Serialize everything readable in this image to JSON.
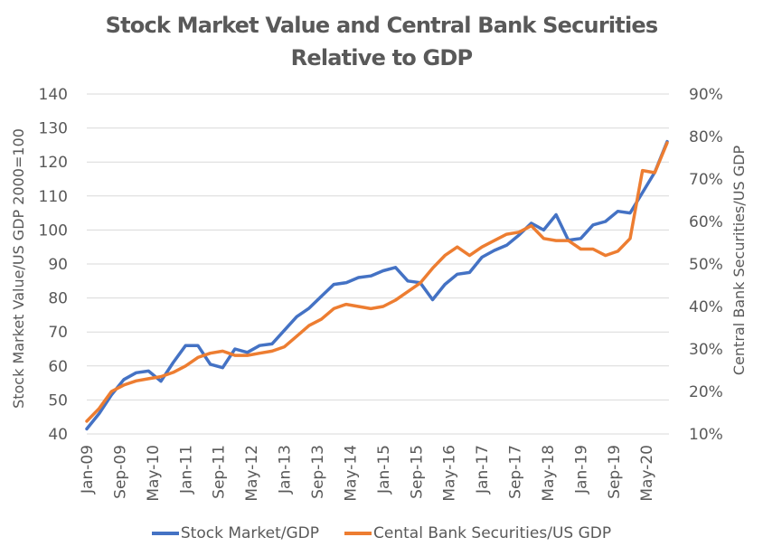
{
  "chart_data": {
    "type": "line",
    "title": "Stock Market Value and Central Bank Securities Relative to GDP",
    "title_lines": [
      "Stock Market Value and Central Bank Securities",
      "Relative to GDP"
    ],
    "xlabel": "",
    "ylabel": "Stock Market Value/US GDP 2000=100",
    "y2label": "Central Bank Securities/US GDP",
    "ylim": [
      40,
      140
    ],
    "y2lim": [
      0.1,
      0.9
    ],
    "yticks": [
      "40",
      "50",
      "60",
      "70",
      "80",
      "90",
      "100",
      "110",
      "120",
      "130",
      "140"
    ],
    "y2ticks": [
      "10%",
      "20%",
      "30%",
      "40%",
      "50%",
      "60%",
      "70%",
      "80%",
      "90%"
    ],
    "grid": true,
    "legend_position": "bottom",
    "x_tick_labels": [
      "Jan-09",
      "Sep-09",
      "May-10",
      "Jan-11",
      "Sep-11",
      "May-12",
      "Jan-13",
      "Sep-13",
      "May-14",
      "Jan-15",
      "Sep-15",
      "May-16",
      "Jan-17",
      "Sep-17",
      "May-18",
      "Jan-19",
      "Sep-19",
      "May-20"
    ],
    "x_start": "Jan-09",
    "x_end": "Dec-20",
    "series": [
      {
        "name": "Stock Market/GDP",
        "axis": "left",
        "color": "#4472C4",
        "values": [
          41.5,
          46,
          51.5,
          56,
          58,
          58.5,
          55.5,
          61,
          66,
          66,
          60.5,
          59.5,
          65,
          64,
          66,
          66.5,
          70.5,
          74.5,
          77,
          80.5,
          84,
          84.5,
          86,
          86.5,
          88,
          89,
          85,
          84.5,
          79.5,
          84,
          87,
          87.5,
          92,
          94,
          95.5,
          98.5,
          102,
          100,
          104.5,
          97,
          97.5,
          101.5,
          102.5,
          105.5,
          105,
          111,
          117,
          126
        ]
      },
      {
        "name": "Cental Bank Securities/US GDP",
        "axis": "right",
        "color": "#ED7D31",
        "values": [
          0.13,
          0.16,
          0.2,
          0.215,
          0.225,
          0.23,
          0.235,
          0.245,
          0.26,
          0.28,
          0.29,
          0.295,
          0.285,
          0.285,
          0.29,
          0.295,
          0.305,
          0.33,
          0.355,
          0.37,
          0.395,
          0.405,
          0.4,
          0.395,
          0.4,
          0.415,
          0.435,
          0.455,
          0.49,
          0.52,
          0.54,
          0.52,
          0.54,
          0.555,
          0.57,
          0.575,
          0.59,
          0.56,
          0.555,
          0.555,
          0.535,
          0.535,
          0.52,
          0.53,
          0.56,
          0.72,
          0.715,
          0.785
        ]
      }
    ]
  }
}
